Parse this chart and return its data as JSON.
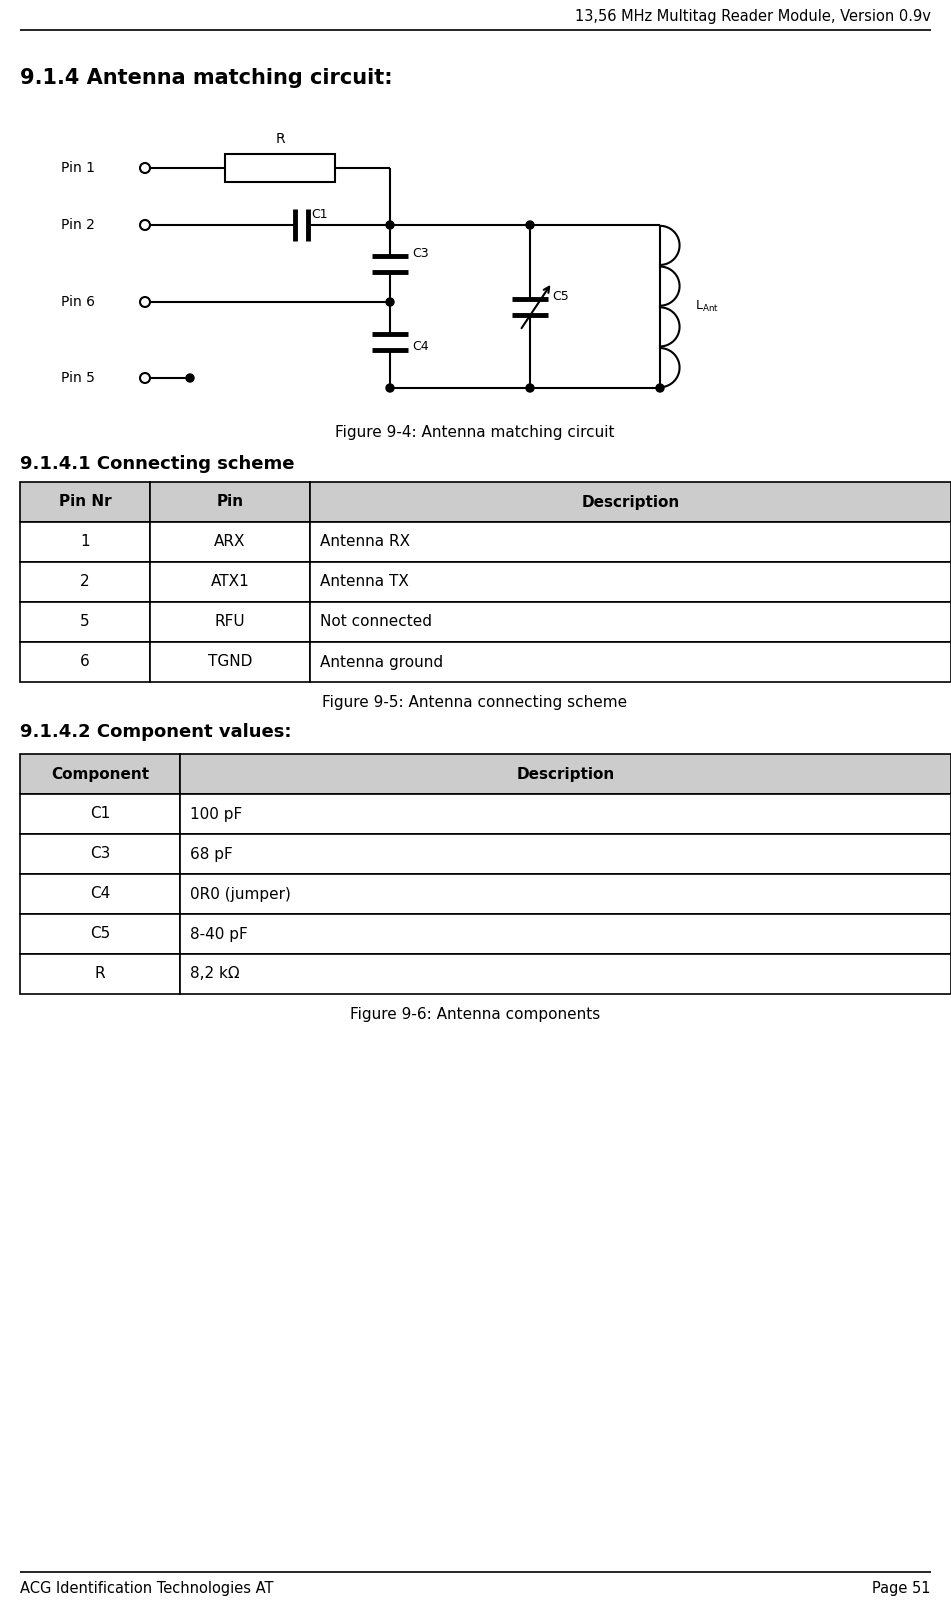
{
  "header_text": "13,56 MHz Multitag Reader Module, Version 0.9v",
  "footer_left": "ACG Identification Technologies AT",
  "footer_right": "Page 51",
  "section_title": "9.1.4 Antenna matching circuit:",
  "figure1_caption": "Figure 9-4: Antenna matching circuit",
  "subsection1_title": "9.1.4.1 Connecting scheme",
  "table1_headers": [
    "Pin Nr",
    "Pin",
    "Description"
  ],
  "table1_rows": [
    [
      "1",
      "ARX",
      "Antenna RX"
    ],
    [
      "2",
      "ATX1",
      "Antenna TX"
    ],
    [
      "5",
      "RFU",
      "Not connected"
    ],
    [
      "6",
      "TGND",
      "Antenna ground"
    ]
  ],
  "figure2_caption": "Figure 9-5: Antenna connecting scheme",
  "subsection2_title": "9.1.4.2 Component values:",
  "table2_headers": [
    "Component",
    "Description"
  ],
  "table2_rows": [
    [
      "C1",
      "100 pF"
    ],
    [
      "C3",
      "68 pF"
    ],
    [
      "C4",
      "0R0 (jumper)"
    ],
    [
      "C5",
      "8-40 pF"
    ],
    [
      "R",
      "8,2 kΩ"
    ]
  ],
  "figure3_caption": "Figure 9-6: Antenna components",
  "bg_color": "#ffffff",
  "text_color": "#000000",
  "line_color": "#000000",
  "table_header_bg": "#cccccc",
  "table_border_color": "#000000"
}
